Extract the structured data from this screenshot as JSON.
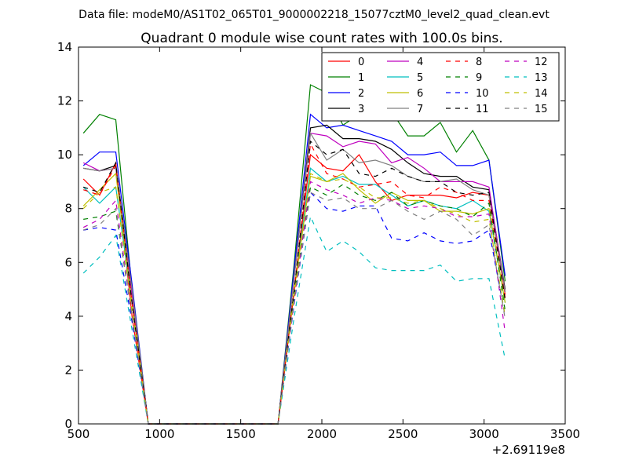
{
  "chart_data": {
    "type": "line",
    "suptitle": "Data file: modeM0/AS1T02_065T01_9000002218_15077cztM0_level2_quad_clean.evt",
    "title": "Quadrant 0 module wise count rates with 100.0s bins.",
    "xlabel": "",
    "ylabel": "",
    "x_offset_label": "+2.69119e8",
    "xlim": [
      500,
      3500
    ],
    "ylim": [
      0,
      14
    ],
    "xticks": [
      500,
      1000,
      1500,
      2000,
      2500,
      3000,
      3500
    ],
    "yticks": [
      0,
      2,
      4,
      6,
      8,
      10,
      12,
      14
    ],
    "grid": false,
    "legend_position": "top-right",
    "legend_columns": 4,
    "x": [
      530,
      630,
      730,
      830,
      930,
      1030,
      1130,
      1230,
      1330,
      1430,
      1530,
      1630,
      1730,
      1830,
      1930,
      2030,
      2130,
      2230,
      2330,
      2430,
      2530,
      2630,
      2730,
      2830,
      2930,
      3030,
      3130
    ],
    "series": [
      {
        "name": "0",
        "color": "#ff0000",
        "dash": "solid",
        "values": [
          9.1,
          8.5,
          9.7,
          4.0,
          0,
          0,
          0,
          0,
          0,
          0,
          0,
          0,
          0,
          5.0,
          10.0,
          9.5,
          9.4,
          10.0,
          9.0,
          8.3,
          8.5,
          8.5,
          8.5,
          8.4,
          8.6,
          8.5,
          4.8
        ]
      },
      {
        "name": "1",
        "color": "#008000",
        "dash": "solid",
        "values": [
          10.8,
          11.5,
          11.3,
          5.0,
          0,
          0,
          0,
          0,
          0,
          0,
          0,
          0,
          0,
          6.0,
          12.6,
          12.3,
          11.1,
          11.5,
          11.5,
          11.6,
          10.7,
          10.7,
          11.2,
          10.1,
          10.9,
          9.8,
          5.3
        ]
      },
      {
        "name": "2",
        "color": "#0000ff",
        "dash": "solid",
        "values": [
          9.6,
          10.1,
          10.1,
          5.2,
          0,
          0,
          0,
          0,
          0,
          0,
          0,
          0,
          0,
          5.8,
          11.5,
          11.0,
          11.1,
          10.9,
          10.7,
          10.5,
          10.0,
          10.0,
          10.1,
          9.6,
          9.6,
          9.8,
          5.5
        ]
      },
      {
        "name": "3",
        "color": "#000000",
        "dash": "solid",
        "values": [
          9.5,
          9.4,
          9.6,
          5.0,
          0,
          0,
          0,
          0,
          0,
          0,
          0,
          0,
          0,
          5.5,
          11.0,
          11.1,
          10.6,
          10.6,
          10.5,
          10.2,
          9.7,
          9.3,
          9.2,
          9.2,
          8.8,
          8.7,
          5.0
        ]
      },
      {
        "name": "4",
        "color": "#bf00bf",
        "dash": "solid",
        "values": [
          9.7,
          9.4,
          9.5,
          4.8,
          0,
          0,
          0,
          0,
          0,
          0,
          0,
          0,
          0,
          5.5,
          10.8,
          10.7,
          10.3,
          10.5,
          10.4,
          9.7,
          9.9,
          9.5,
          9.0,
          9.0,
          9.0,
          8.8,
          4.9
        ]
      },
      {
        "name": "5",
        "color": "#00bfbf",
        "dash": "solid",
        "values": [
          8.8,
          8.2,
          8.8,
          4.5,
          0,
          0,
          0,
          0,
          0,
          0,
          0,
          0,
          0,
          5.0,
          9.5,
          9.0,
          9.2,
          8.9,
          8.9,
          8.5,
          8.1,
          8.3,
          8.1,
          8.0,
          8.3,
          7.9,
          4.5
        ]
      },
      {
        "name": "6",
        "color": "#bfbf00",
        "dash": "solid",
        "values": [
          8.1,
          8.7,
          9.3,
          4.5,
          0,
          0,
          0,
          0,
          0,
          0,
          0,
          0,
          0,
          5.0,
          9.2,
          9.0,
          9.3,
          8.7,
          8.2,
          8.6,
          8.3,
          8.3,
          7.9,
          7.9,
          7.8,
          8.0,
          4.5
        ]
      },
      {
        "name": "7",
        "color": "#808080",
        "dash": "solid",
        "values": [
          9.5,
          9.4,
          9.5,
          5.0,
          0,
          0,
          0,
          0,
          0,
          0,
          0,
          0,
          0,
          5.5,
          10.8,
          9.8,
          10.2,
          9.7,
          9.8,
          9.6,
          9.2,
          9.0,
          9.0,
          9.1,
          8.7,
          8.5,
          4.9
        ]
      },
      {
        "name": "8",
        "color": "#ff0000",
        "dash": "dashed",
        "values": [
          8.7,
          8.5,
          9.6,
          4.5,
          0,
          0,
          0,
          0,
          0,
          0,
          0,
          0,
          0,
          5.0,
          10.4,
          9.3,
          9.1,
          8.8,
          8.9,
          9.0,
          8.5,
          8.4,
          8.8,
          8.6,
          8.3,
          8.3,
          4.7
        ]
      },
      {
        "name": "9",
        "color": "#008000",
        "dash": "dashed",
        "values": [
          7.6,
          7.7,
          7.9,
          4.0,
          0,
          0,
          0,
          0,
          0,
          0,
          0,
          0,
          0,
          4.8,
          8.8,
          8.5,
          8.9,
          8.5,
          8.3,
          8.6,
          8.1,
          8.3,
          8.1,
          8.0,
          7.7,
          8.2,
          4.2
        ]
      },
      {
        "name": "10",
        "color": "#0000ff",
        "dash": "dashed",
        "values": [
          7.2,
          7.3,
          7.2,
          3.8,
          0,
          0,
          0,
          0,
          0,
          0,
          0,
          0,
          0,
          4.5,
          8.6,
          8.0,
          7.9,
          8.1,
          8.1,
          6.9,
          6.8,
          7.1,
          6.8,
          6.7,
          6.8,
          7.2,
          4.0
        ]
      },
      {
        "name": "11",
        "color": "#000000",
        "dash": "dashed",
        "values": [
          8.8,
          8.6,
          9.7,
          4.5,
          0,
          0,
          0,
          0,
          0,
          0,
          0,
          0,
          0,
          5.0,
          10.5,
          10.0,
          10.2,
          9.3,
          9.2,
          9.5,
          9.2,
          9.0,
          9.0,
          8.6,
          8.5,
          8.6,
          4.6
        ]
      },
      {
        "name": "12",
        "color": "#bf00bf",
        "dash": "dashed",
        "values": [
          7.3,
          7.6,
          8.3,
          4.0,
          0,
          0,
          0,
          0,
          0,
          0,
          0,
          0,
          0,
          4.6,
          9.0,
          8.7,
          8.5,
          8.2,
          8.4,
          8.3,
          8.0,
          8.1,
          8.0,
          7.7,
          7.7,
          7.8,
          3.4
        ]
      },
      {
        "name": "13",
        "color": "#00bfbf",
        "dash": "dashed",
        "values": [
          5.6,
          6.2,
          7.0,
          3.5,
          0,
          0,
          0,
          0,
          0,
          0,
          0,
          0,
          0,
          4.0,
          7.7,
          6.4,
          6.8,
          6.4,
          5.8,
          5.7,
          5.7,
          5.7,
          5.9,
          5.3,
          5.4,
          5.4,
          2.4
        ]
      },
      {
        "name": "14",
        "color": "#bfbf00",
        "dash": "dashed",
        "values": [
          8.0,
          8.6,
          8.8,
          4.2,
          0,
          0,
          0,
          0,
          0,
          0,
          0,
          0,
          0,
          4.8,
          9.3,
          9.0,
          9.1,
          8.8,
          8.4,
          8.4,
          8.2,
          8.3,
          8.0,
          7.8,
          7.5,
          7.6,
          4.0
        ]
      },
      {
        "name": "15",
        "color": "#808080",
        "dash": "dashed",
        "values": [
          7.2,
          7.4,
          8.0,
          4.0,
          0,
          0,
          0,
          0,
          0,
          0,
          0,
          0,
          0,
          4.6,
          8.6,
          8.3,
          8.4,
          8.0,
          8.0,
          8.3,
          7.9,
          7.6,
          7.9,
          7.6,
          7.0,
          7.4,
          3.9
        ]
      }
    ]
  }
}
